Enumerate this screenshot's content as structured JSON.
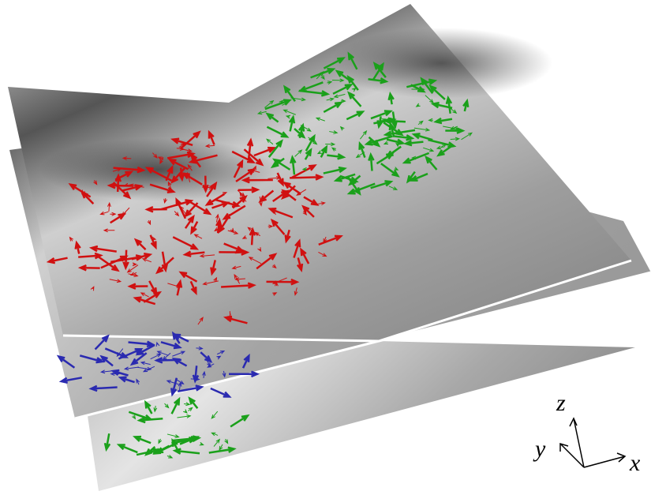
{
  "axes": {
    "z": "z",
    "y": "y",
    "x": "x"
  }
}
